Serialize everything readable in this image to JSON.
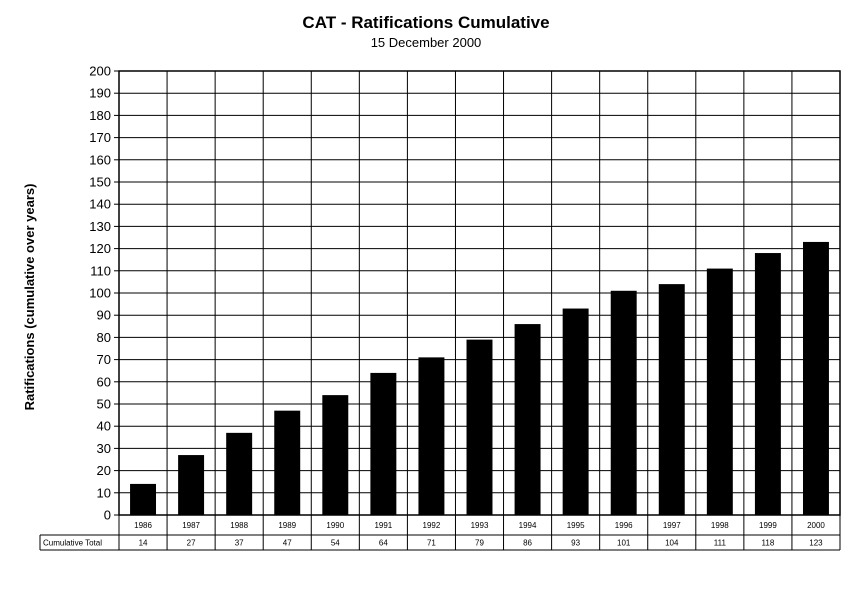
{
  "chart_data": {
    "type": "bar",
    "title": "CAT - Ratifications Cumulative",
    "subtitle": "15 December 2000",
    "ylabel": "Ratifications (cumulative over years)",
    "xlabel": "",
    "ylim": [
      0,
      200
    ],
    "ytick_step": 10,
    "grid": true,
    "categories": [
      "1986",
      "1987",
      "1988",
      "1989",
      "1990",
      "1991",
      "1992",
      "1993",
      "1994",
      "1995",
      "1996",
      "1997",
      "1998",
      "1999",
      "2000"
    ],
    "series": [
      {
        "name": "Cumulative Total",
        "values": [
          14,
          27,
          37,
          47,
          54,
          64,
          71,
          79,
          86,
          93,
          101,
          104,
          111,
          118,
          123
        ]
      }
    ],
    "data_table": {
      "row_label": "Cumulative Total"
    },
    "bar_color": "#000000",
    "gridline_color": "#000000"
  }
}
